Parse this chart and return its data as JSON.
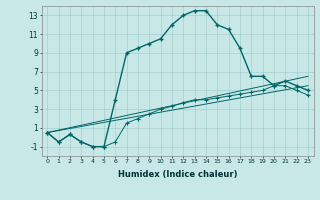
{
  "xlabel": "Humidex (Indice chaleur)",
  "bg_color": "#c8e8e8",
  "line_color": "#006666",
  "xlim": [
    -0.5,
    23.5
  ],
  "ylim": [
    -2,
    14
  ],
  "yticks": [
    -1,
    1,
    3,
    5,
    7,
    9,
    11,
    13
  ],
  "xticks": [
    0,
    1,
    2,
    3,
    4,
    5,
    6,
    7,
    8,
    9,
    10,
    11,
    12,
    13,
    14,
    15,
    16,
    17,
    18,
    19,
    20,
    21,
    22,
    23
  ],
  "main_x": [
    0,
    1,
    2,
    3,
    4,
    5,
    6,
    7,
    8,
    9,
    10,
    11,
    12,
    13,
    14,
    15,
    16,
    17,
    18,
    19,
    20,
    21,
    22,
    23
  ],
  "main_y": [
    0.5,
    -0.5,
    0.3,
    -0.5,
    -1.0,
    -1.0,
    4.0,
    9.0,
    9.5,
    10.0,
    10.5,
    12.0,
    13.0,
    13.5,
    13.5,
    12.0,
    11.5,
    9.5,
    6.5,
    6.5,
    5.5,
    6.0,
    5.5,
    5.0
  ],
  "line2_x": [
    0,
    1,
    2,
    3,
    4,
    5,
    6,
    7,
    8,
    9,
    10,
    11,
    12,
    13,
    14,
    15,
    16,
    17,
    18,
    19,
    20,
    21,
    22,
    23
  ],
  "line2_y": [
    0.5,
    -0.5,
    0.3,
    -0.5,
    -1.0,
    -1.0,
    -0.5,
    1.5,
    2.0,
    2.5,
    3.0,
    3.3,
    3.7,
    4.0,
    4.0,
    4.2,
    4.4,
    4.6,
    4.8,
    5.0,
    5.5,
    5.5,
    5.0,
    4.5
  ],
  "line3_x": [
    0,
    23
  ],
  "line3_y": [
    0.5,
    5.5
  ],
  "line4_x": [
    0,
    23
  ],
  "line4_y": [
    0.5,
    6.5
  ]
}
